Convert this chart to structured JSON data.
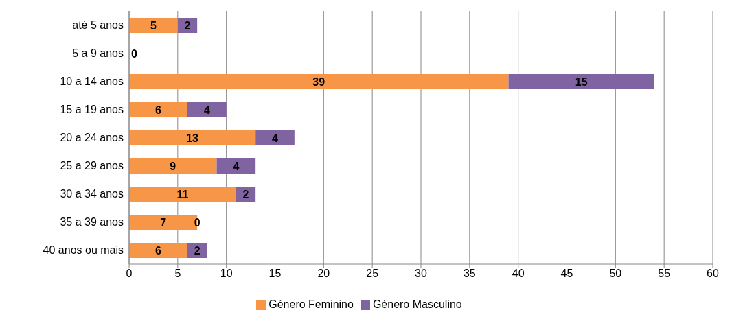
{
  "chart_data": {
    "type": "bar",
    "orientation": "horizontal",
    "stacked": true,
    "categories": [
      "até 5 anos",
      "5 a 9 anos",
      "10 a 14 anos",
      "15 a 19 anos",
      "20 a 24 anos",
      "25 a 29 anos",
      "30 a 34 anos",
      "35 a 39 anos",
      "40 anos ou mais"
    ],
    "series": [
      {
        "name": "Género Feminino",
        "color": "#f79646",
        "values": [
          5,
          0,
          39,
          6,
          13,
          9,
          11,
          7,
          6
        ],
        "value_labels": [
          "5",
          "0",
          "39",
          "6",
          "13",
          "9",
          "11",
          "7",
          "6"
        ]
      },
      {
        "name": "Género Masculino",
        "color": "#8064a2",
        "values": [
          2,
          0,
          15,
          4,
          4,
          4,
          2,
          0,
          2
        ],
        "value_labels": [
          "2",
          null,
          "15",
          "4",
          "4",
          "4",
          "2",
          "0",
          "2"
        ]
      }
    ],
    "xlim": [
      0,
      60
    ],
    "xticks": [
      0,
      5,
      10,
      15,
      20,
      25,
      30,
      35,
      40,
      45,
      50,
      55,
      60
    ],
    "grid": "x",
    "legend": "bottom"
  }
}
